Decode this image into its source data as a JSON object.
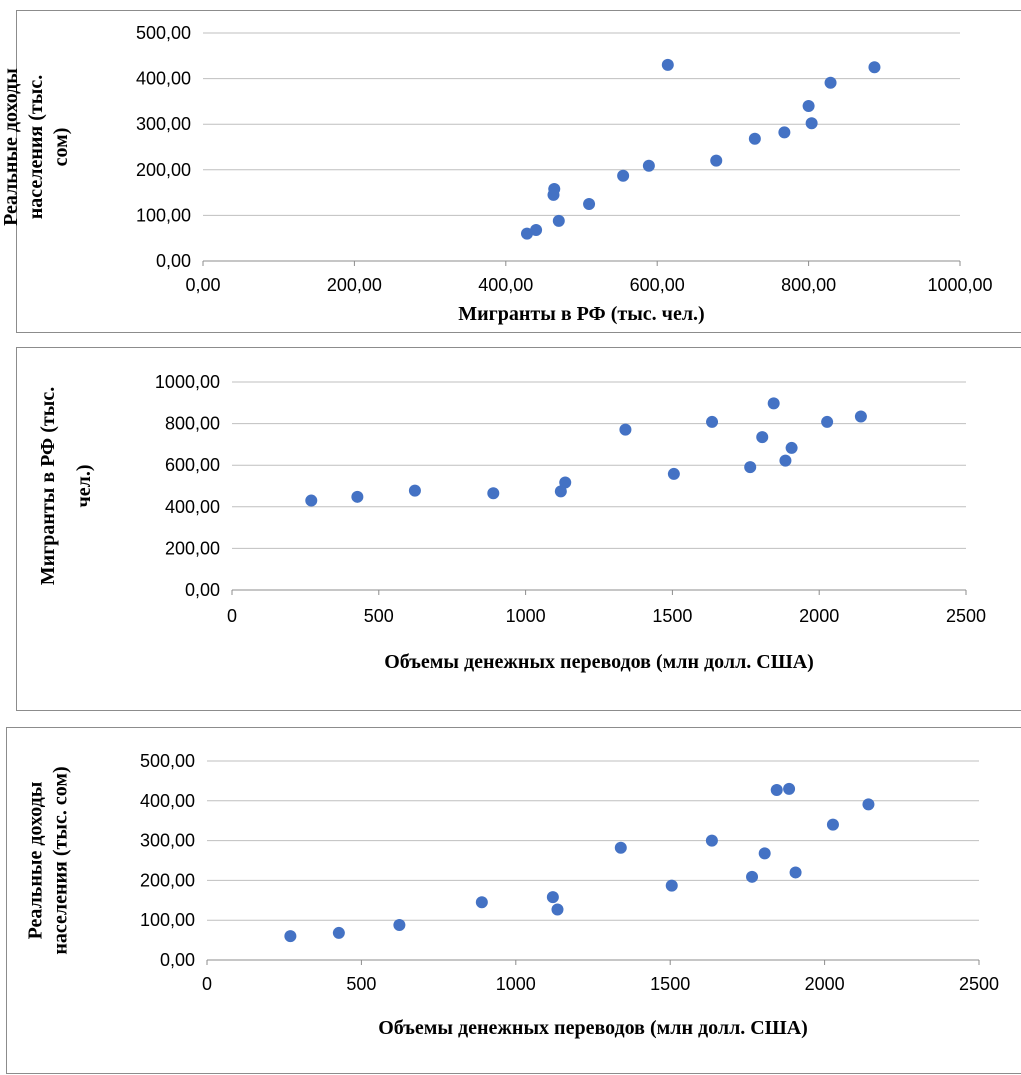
{
  "colors": {
    "marker": "#4472C4",
    "grid": "#BFBFBF",
    "axis": "#8C8C8C"
  },
  "chart_data": [
    {
      "type": "scatter",
      "title": "",
      "xlabel": "Мигранты  в РФ (тыс. чел.)",
      "ylabel_lines": [
        "Реальные доходы",
        "населения (тыс.",
        "сом)"
      ],
      "xlim": [
        0,
        1000
      ],
      "ylim": [
        0,
        500
      ],
      "x_ticks": [
        "0,00",
        "200,00",
        "400,00",
        "600,00",
        "800,00",
        "1000,00"
      ],
      "y_ticks": [
        "0,00",
        "100,00",
        "200,00",
        "300,00",
        "400,00",
        "500,00"
      ],
      "grid": true,
      "legend": "none",
      "points": [
        [
          428,
          60
        ],
        [
          440,
          68
        ],
        [
          463,
          145
        ],
        [
          464,
          158
        ],
        [
          470,
          88
        ],
        [
          510,
          125
        ],
        [
          555,
          187
        ],
        [
          589,
          209
        ],
        [
          614,
          430
        ],
        [
          678,
          220
        ],
        [
          729,
          268
        ],
        [
          768,
          282
        ],
        [
          800,
          340
        ],
        [
          804,
          302
        ],
        [
          829,
          391
        ],
        [
          887,
          425
        ]
      ]
    },
    {
      "type": "scatter",
      "title": "",
      "xlabel": "Объемы денежных переводов (млн долл. США)",
      "ylabel_lines": [
        "Мигранты  в РФ (тыс.",
        "чел.)"
      ],
      "xlim": [
        0,
        2500
      ],
      "ylim": [
        0,
        1000
      ],
      "x_ticks": [
        "0",
        "500",
        "1000",
        "1500",
        "2000",
        "2500"
      ],
      "y_ticks": [
        "0,00",
        "200,00",
        "400,00",
        "600,00",
        "800,00",
        "1000,00"
      ],
      "grid": true,
      "legend": "none",
      "points": [
        [
          270,
          430
        ],
        [
          427,
          448
        ],
        [
          623,
          478
        ],
        [
          890,
          465
        ],
        [
          1120,
          474
        ],
        [
          1135,
          517
        ],
        [
          1340,
          771
        ],
        [
          1505,
          558
        ],
        [
          1635,
          808
        ],
        [
          1765,
          591
        ],
        [
          1806,
          735
        ],
        [
          1845,
          897
        ],
        [
          1885,
          622
        ],
        [
          1906,
          683
        ],
        [
          2027,
          808
        ],
        [
          2142,
          834
        ]
      ]
    },
    {
      "type": "scatter",
      "title": "",
      "xlabel": "Объемы денежных переводов (млн долл. США)",
      "ylabel_lines": [
        "Реальные доходы",
        "населения (тыс. сом)"
      ],
      "xlim": [
        0,
        2500
      ],
      "ylim": [
        0,
        500
      ],
      "x_ticks": [
        "0",
        "500",
        "1000",
        "1500",
        "2000",
        "2500"
      ],
      "y_ticks": [
        "0,00",
        "100,00",
        "200,00",
        "300,00",
        "400,00",
        "500,00"
      ],
      "grid": true,
      "legend": "none",
      "points": [
        [
          270,
          60
        ],
        [
          427,
          68
        ],
        [
          623,
          88
        ],
        [
          890,
          145
        ],
        [
          1120,
          158
        ],
        [
          1135,
          127
        ],
        [
          1340,
          282
        ],
        [
          1505,
          187
        ],
        [
          1635,
          300
        ],
        [
          1765,
          209
        ],
        [
          1806,
          268
        ],
        [
          1845,
          427
        ],
        [
          1885,
          430
        ],
        [
          1906,
          220
        ],
        [
          2027,
          340
        ],
        [
          2142,
          391
        ]
      ]
    }
  ]
}
